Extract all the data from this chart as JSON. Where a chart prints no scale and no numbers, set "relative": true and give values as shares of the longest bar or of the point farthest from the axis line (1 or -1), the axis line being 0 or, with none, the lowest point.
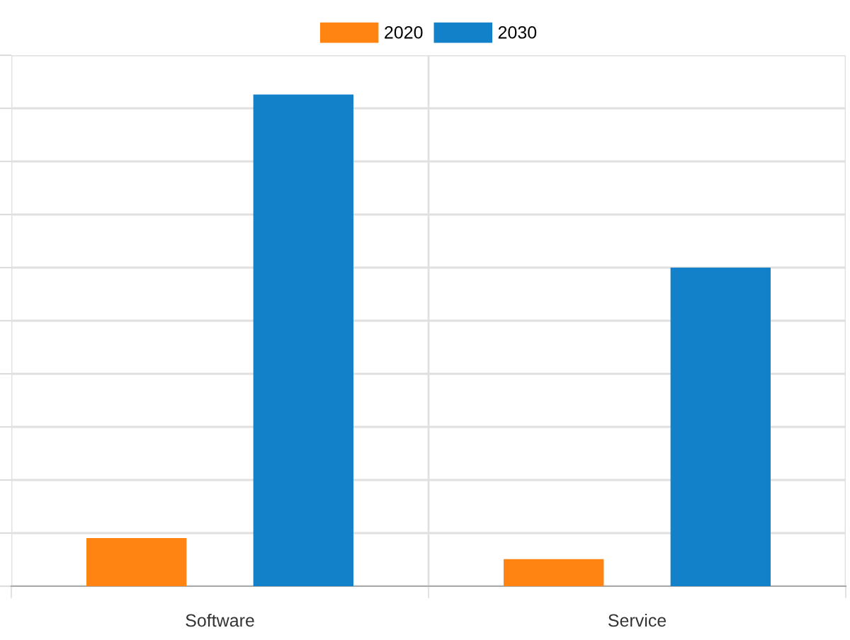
{
  "chart_data": {
    "type": "bar",
    "relative": true,
    "categories": [
      "Software",
      "Service"
    ],
    "series": [
      {
        "name": "2020",
        "color": "#ff8412",
        "values": [
          0.098,
          0.055
        ]
      },
      {
        "name": "2030",
        "color": "#1380ca",
        "values": [
          1,
          0.648
        ]
      }
    ],
    "legend": "top",
    "grid": true,
    "tick_labels": "x"
  }
}
